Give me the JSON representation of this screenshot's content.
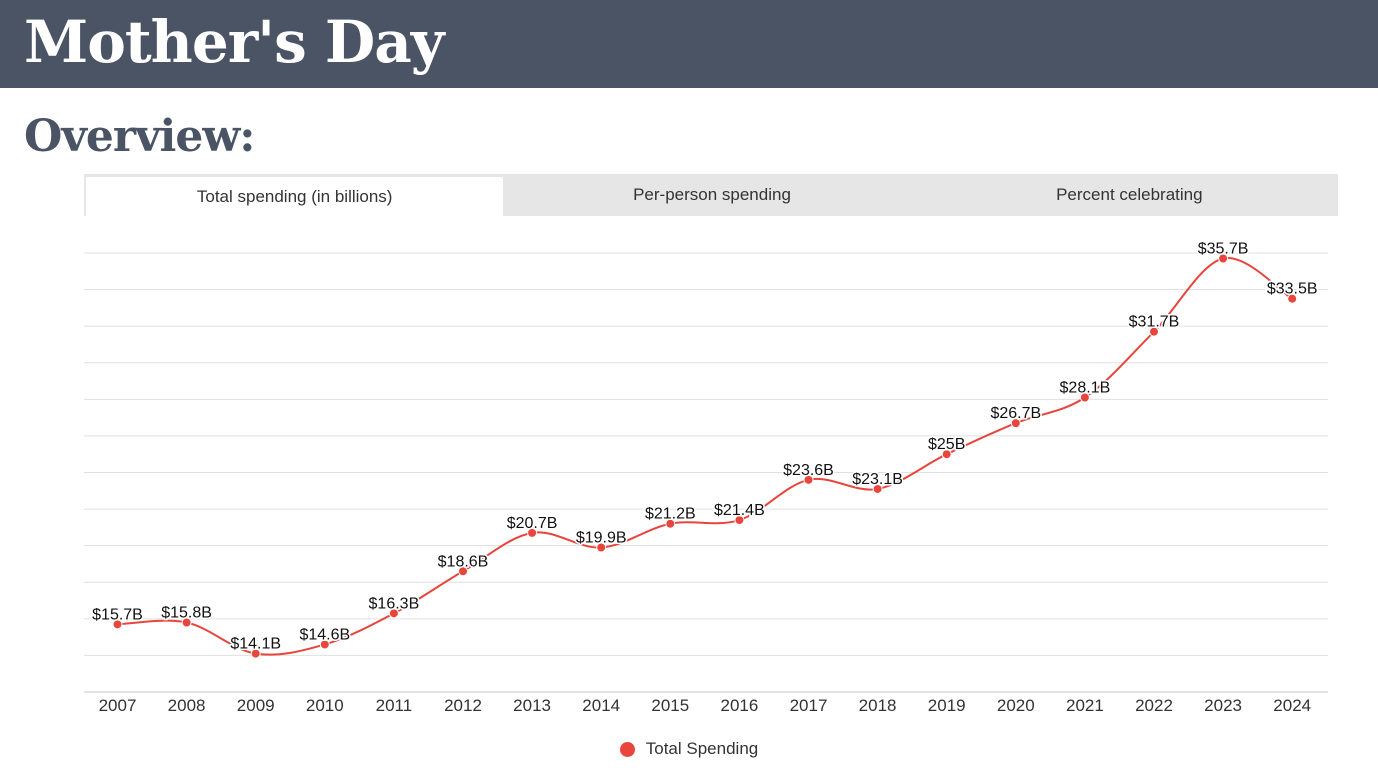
{
  "header": {
    "title": "Mother's Day"
  },
  "section": {
    "title": "Overview:"
  },
  "tabs": [
    {
      "label": "Total spending (in billions)",
      "active": true
    },
    {
      "label": "Per-person spending",
      "active": false
    },
    {
      "label": "Percent celebrating",
      "active": false
    }
  ],
  "colors": {
    "series": "#e8453c",
    "banner": "#4a5465",
    "heading": "#4a5465"
  },
  "chart_data": {
    "type": "line",
    "title": "",
    "xlabel": "",
    "ylabel": "",
    "categories": [
      "2007",
      "2008",
      "2009",
      "2010",
      "2011",
      "2012",
      "2013",
      "2014",
      "2015",
      "2016",
      "2017",
      "2018",
      "2019",
      "2020",
      "2021",
      "2022",
      "2023",
      "2024"
    ],
    "series": [
      {
        "name": "Total Spending",
        "values": [
          15.7,
          15.8,
          14.1,
          14.6,
          16.3,
          18.6,
          20.7,
          19.9,
          21.2,
          21.4,
          23.6,
          23.1,
          25,
          26.7,
          28.1,
          31.7,
          35.7,
          33.5
        ],
        "labels": [
          "$15.7B",
          "$15.8B",
          "$14.1B",
          "$14.6B",
          "$16.3B",
          "$18.6B",
          "$20.7B",
          "$19.9B",
          "$21.2B",
          "$21.4B",
          "$23.6B",
          "$23.1B",
          "$25B",
          "$26.7B",
          "$28.1B",
          "$31.7B",
          "$35.7B",
          "$33.5B"
        ]
      }
    ],
    "ylim": [
      12,
      36
    ],
    "grid": true,
    "legend_position": "bottom"
  }
}
